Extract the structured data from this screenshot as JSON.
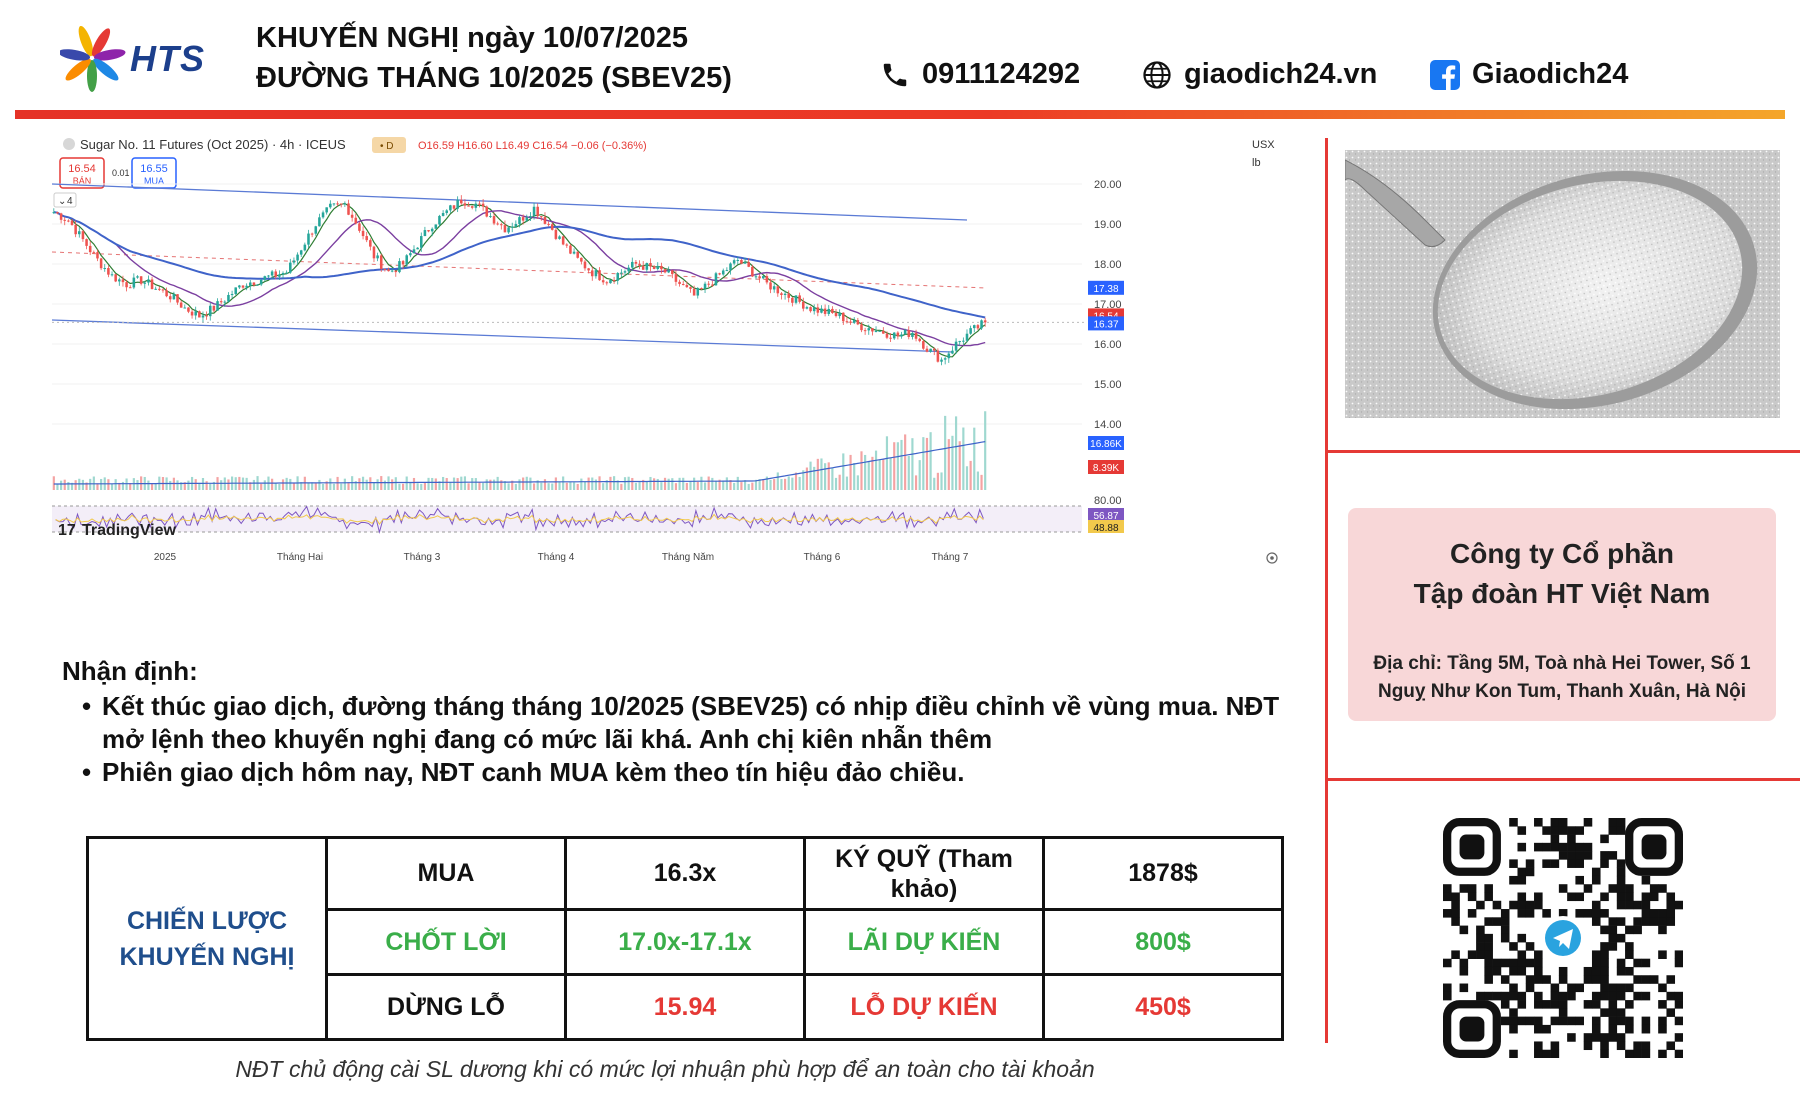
{
  "header": {
    "title_line1": "KHUYẾN NGHỊ ngày 10/07/2025",
    "title_line2": "ĐƯỜNG THÁNG 10/2025 (SBEV25)",
    "logo_text": "HTS",
    "phone": "0911124292",
    "website": "giaodich24.vn",
    "facebook": "Giaodich24",
    "accent_color": "#e53227"
  },
  "chart_data": {
    "type": "candlestick",
    "title": "Sugar No. 11 Futures (Oct 2025) · 4h · ICEUS",
    "ohlc_label": "O16.59 H16.60 L16.49 C16.54 −0.06 (−0.36%)",
    "currency": "USX",
    "unit": "lb",
    "sell_box": {
      "value": "16.54",
      "label": "BÁN"
    },
    "buy_box": {
      "value": "16.55",
      "label": "MUA"
    },
    "spread": "0.01",
    "indicator_count": "4",
    "y_ticks": [
      "20.00",
      "19.00",
      "18.00",
      "17.00",
      "16.00",
      "15.00",
      "14.00"
    ],
    "price_tags": [
      {
        "value": "17.38",
        "color": "#2962ff"
      },
      {
        "value": "16.54",
        "color": "#e53935"
      },
      {
        "value": "16.37",
        "color": "#2962ff"
      }
    ],
    "volume_tags": [
      {
        "value": "16.86K",
        "color": "#2962ff"
      },
      {
        "value": "8.39K",
        "color": "#e53935"
      }
    ],
    "rsi_ticks": [
      "80.00"
    ],
    "rsi_tags": [
      {
        "value": "56.87",
        "color": "#7e57c2"
      },
      {
        "value": "48.88",
        "color": "#f2c94c"
      }
    ],
    "x_ticks": [
      "2025",
      "Tháng Hai",
      "Tháng 3",
      "Tháng 4",
      "Tháng Năm",
      "Tháng 6",
      "Tháng 7"
    ],
    "watermark": "TradingView",
    "close_series": [
      19.3,
      19.1,
      18.6,
      18.1,
      17.7,
      17.5,
      17.6,
      17.4,
      17.2,
      16.9,
      16.7,
      16.9,
      17.2,
      17.5,
      17.6,
      17.7,
      17.8,
      18.4,
      19.0,
      19.4,
      19.5,
      18.9,
      18.2,
      17.8,
      18.0,
      18.5,
      19.0,
      19.3,
      19.6,
      19.5,
      19.2,
      18.9,
      19.1,
      19.4,
      19.0,
      18.5,
      18.1,
      17.8,
      17.6,
      17.8,
      18.0,
      17.9,
      17.8,
      17.5,
      17.2,
      17.5,
      17.8,
      18.1,
      17.8,
      17.5,
      17.3,
      17.1,
      16.9,
      16.8,
      16.7,
      16.5,
      16.4,
      16.3,
      16.2,
      16.3,
      15.9,
      15.6,
      16.0,
      16.3,
      16.54
    ],
    "x_range": [
      "2025-01-01",
      "2025-07-10"
    ],
    "y_range": [
      14.0,
      20.0
    ]
  },
  "analysis": {
    "heading": "Nhận định:",
    "bullets": [
      "Kết thúc giao dịch, đường tháng tháng 10/2025 (SBEV25) có nhịp điều chỉnh về vùng mua. NĐT mở lệnh theo khuyến nghị đang có mức lãi khá. Anh chị kiên nhẫn thêm",
      "Phiên giao dịch hôm nay, NĐT canh MUA kèm theo tín hiệu đảo chiều."
    ]
  },
  "strategy_table": {
    "label": "CHIẾN LƯỢC KHUYẾN NGHỊ",
    "rows": [
      [
        "MUA",
        "16.3x",
        "KÝ QUỸ (Tham khảo)",
        "1878$"
      ],
      [
        "CHỐT LỜI",
        "17.0x-17.1x",
        "LÃI DỰ KIẾN",
        "800$"
      ],
      [
        "DỪNG LỖ",
        "15.94",
        "LỖ DỰ KIẾN",
        "450$"
      ]
    ],
    "colors": {
      "label": "#1f4e8c",
      "profit": "#3aae49",
      "loss": "#e53935",
      "neutral": "#111111"
    }
  },
  "company": {
    "name_line1": "Công ty Cổ phần",
    "name_line2": "Tập đoàn HT Việt Nam",
    "address_line1": "Địa chỉ: Tầng 5M, Toà nhà Hei Tower, Số 1",
    "address_line2": "Nguỵ Như Kon Tum, Thanh Xuân, Hà Nội"
  },
  "footnote": "NĐT chủ động cài SL dương khi có mức lợi nhuận phù hợp để an toàn cho tài khoản"
}
